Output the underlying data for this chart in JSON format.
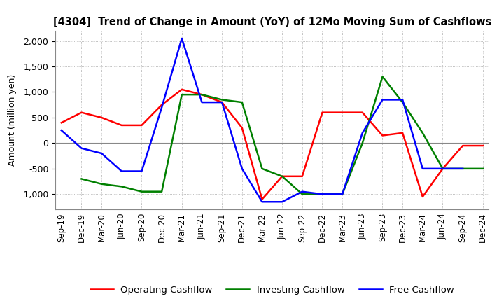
{
  "title": "[4304]  Trend of Change in Amount (YoY) of 12Mo Moving Sum of Cashflows",
  "ylabel": "Amount (million yen)",
  "x_labels": [
    "Sep-19",
    "Dec-19",
    "Mar-20",
    "Jun-20",
    "Sep-20",
    "Dec-20",
    "Mar-21",
    "Jun-21",
    "Sep-21",
    "Dec-21",
    "Mar-22",
    "Jun-22",
    "Sep-22",
    "Dec-22",
    "Mar-23",
    "Jun-23",
    "Sep-23",
    "Dec-23",
    "Mar-24",
    "Jun-24",
    "Sep-24",
    "Dec-24"
  ],
  "operating": [
    400,
    600,
    500,
    350,
    350,
    750,
    1050,
    950,
    800,
    300,
    -1100,
    -650,
    -650,
    600,
    600,
    600,
    150,
    200,
    -1050,
    -500,
    -50,
    -50
  ],
  "investing": [
    null,
    -700,
    -800,
    -850,
    -950,
    -950,
    950,
    950,
    850,
    800,
    -500,
    -650,
    -1000,
    -1000,
    -1000,
    0,
    1300,
    800,
    200,
    -500,
    -500,
    -500
  ],
  "free": [
    250,
    -100,
    -200,
    -550,
    -550,
    700,
    2050,
    800,
    800,
    -500,
    -1150,
    -1150,
    -950,
    -1000,
    -1000,
    200,
    850,
    850,
    -500,
    -500,
    -500,
    null
  ],
  "operating_color": "#ff0000",
  "investing_color": "#008000",
  "free_color": "#0000ff",
  "ylim": [
    -1300,
    2200
  ],
  "yticks": [
    -1000,
    -500,
    0,
    500,
    1000,
    1500,
    2000
  ],
  "grid": true,
  "legend_labels": [
    "Operating Cashflow",
    "Investing Cashflow",
    "Free Cashflow"
  ]
}
